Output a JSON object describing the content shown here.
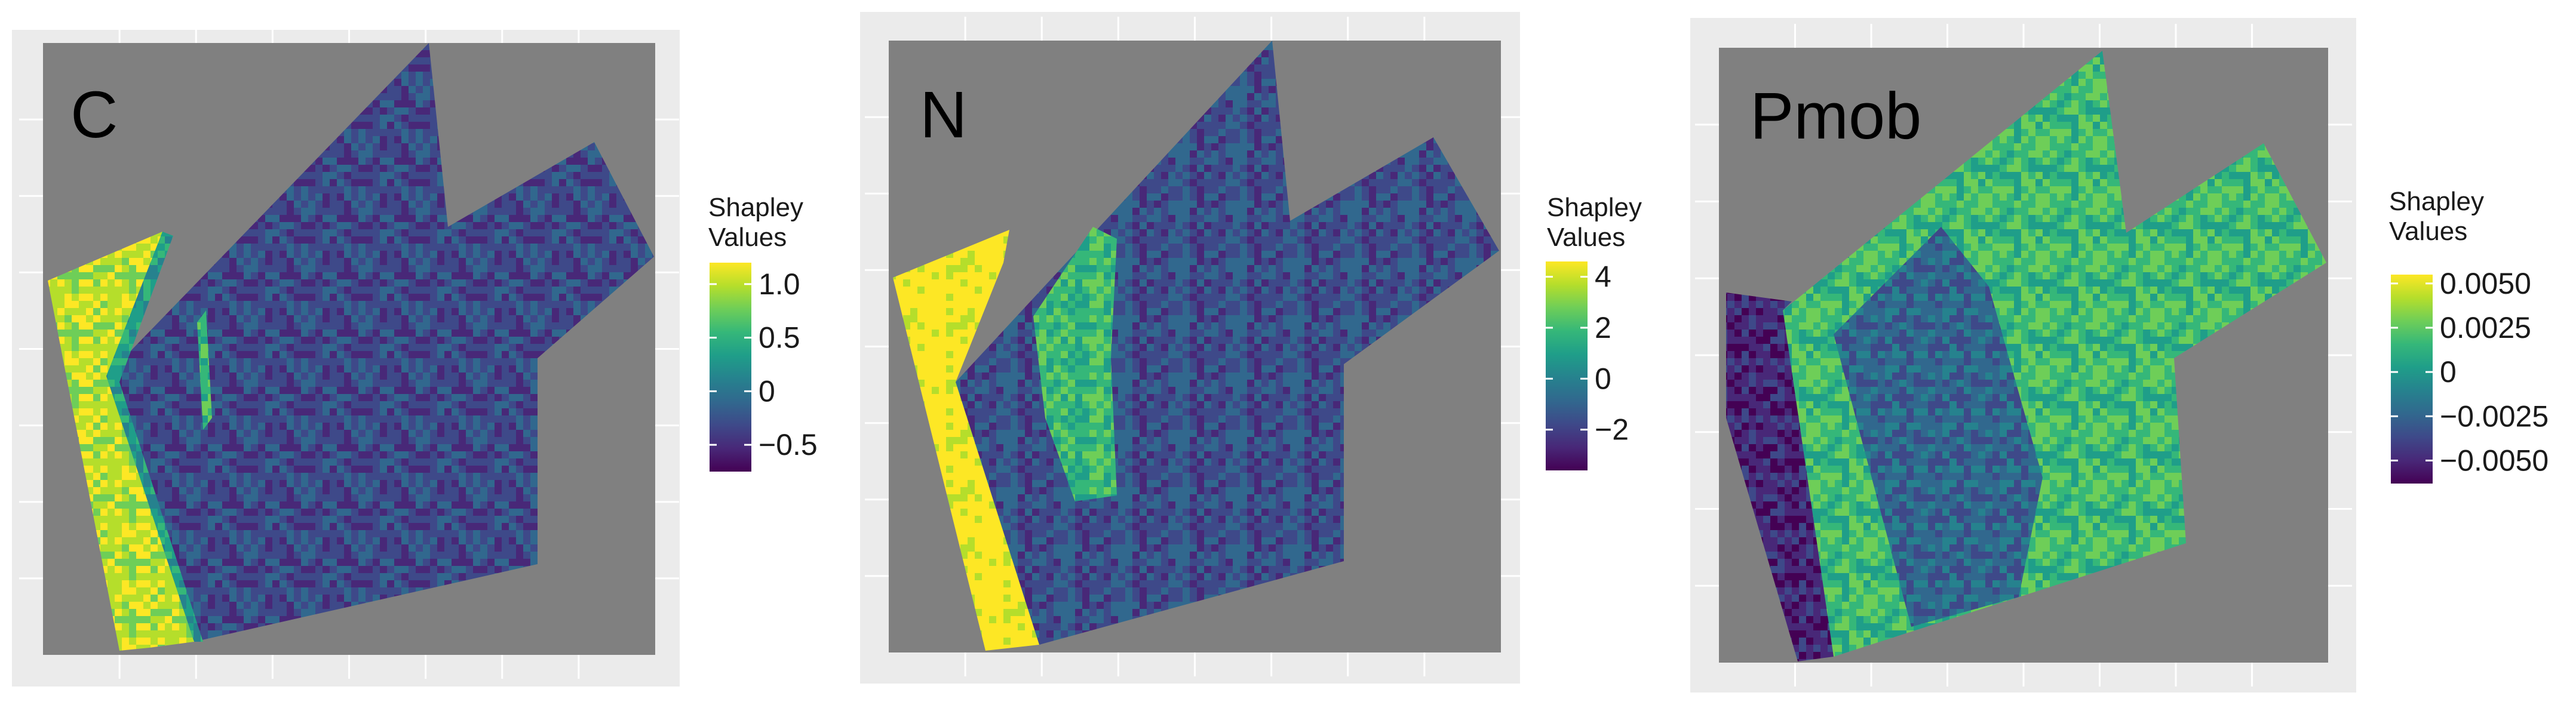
{
  "figure": {
    "panels": [
      {
        "label": "C",
        "legend": {
          "title_line1": "Shapley",
          "title_line2": "Values",
          "ticks": [
            "1.0",
            "0.5",
            "0",
            "−0.5"
          ],
          "tick_values": [
            1.0,
            0.5,
            0,
            -0.5
          ],
          "min": -0.75,
          "max": 1.2
        }
      },
      {
        "label": "N",
        "legend": {
          "title_line1": "Shapley",
          "title_line2": "Values",
          "ticks": [
            "4",
            "2",
            "0",
            "−2"
          ],
          "tick_values": [
            4,
            2,
            0,
            -2
          ],
          "min": -3.6,
          "max": 4.6
        }
      },
      {
        "label": "Pmob",
        "legend": {
          "title_line1": "Shapley",
          "title_line2": "Values",
          "ticks": [
            "0.0050",
            "0.0025",
            "0",
            "−0.0025",
            "−0.0050"
          ],
          "tick_values": [
            0.005,
            0.0025,
            0,
            -0.0025,
            -0.005
          ],
          "min": -0.0063,
          "max": 0.0055
        }
      }
    ]
  },
  "chart_data": [
    {
      "type": "heatmap",
      "title": "C",
      "colorbar_label": "Shapley Values",
      "colorbar_ticks": [
        1.0,
        0.5,
        0,
        -0.5
      ],
      "colorbar_range": [
        -0.75,
        1.2
      ],
      "colormap": "viridis",
      "background": "#808080",
      "grid": true
    },
    {
      "type": "heatmap",
      "title": "N",
      "colorbar_label": "Shapley Values",
      "colorbar_ticks": [
        4,
        2,
        0,
        -2
      ],
      "colorbar_range": [
        -3.6,
        4.6
      ],
      "colormap": "viridis",
      "background": "#808080",
      "grid": true
    },
    {
      "type": "heatmap",
      "title": "Pmob",
      "colorbar_label": "Shapley Values",
      "colorbar_ticks": [
        0.005,
        0.0025,
        0,
        -0.0025,
        -0.005
      ],
      "colorbar_range": [
        -0.0063,
        0.0055
      ],
      "colormap": "viridis",
      "background": "#808080",
      "grid": true
    }
  ],
  "colors": {
    "plot_background": "#808080",
    "panel_frame": "#ebebeb",
    "gridline": "#ffffff",
    "viridis": [
      "#440154",
      "#482878",
      "#3e4989",
      "#31688e",
      "#26828e",
      "#1f9e89",
      "#35b779",
      "#6ece58",
      "#b5de2b",
      "#fde725"
    ]
  }
}
